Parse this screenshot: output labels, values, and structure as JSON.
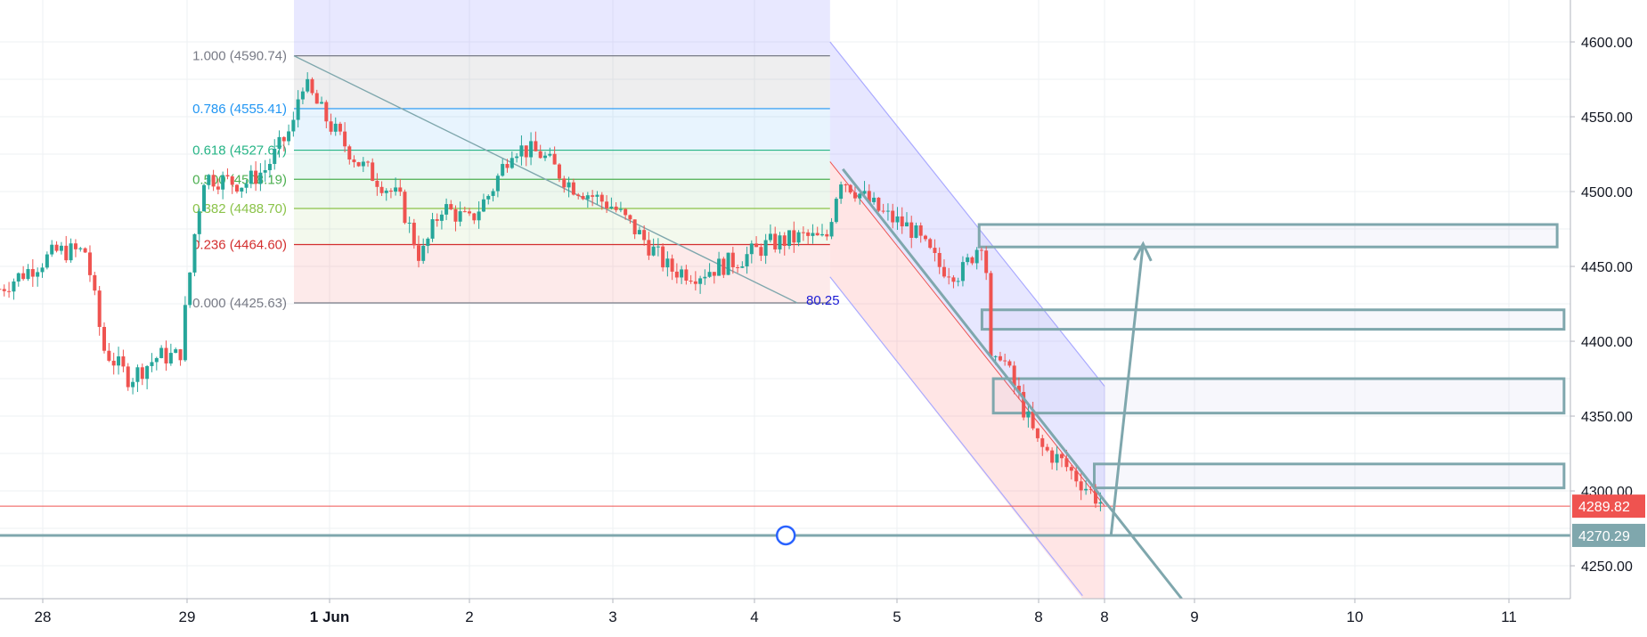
{
  "colors": {
    "up": "#26a69a",
    "down": "#ef5350",
    "grid": "#eef0f3",
    "axis_text": "#131722",
    "line_tool": "#7fa7ad",
    "last_price_bg": "#ef5350",
    "line_price_bg": "#7fa7ad",
    "channel_blue": "#aaaaff",
    "channel_fill_top": "rgba(120,120,255,0.18)",
    "channel_fill_bottom": "rgba(255,110,110,0.18)",
    "fib_box_fill": "rgba(120,120,255,0.17)"
  },
  "chart_data": {
    "type": "candlestick",
    "title": "",
    "xlabel": "",
    "ylabel": "",
    "ylim": [
      4228,
      4628
    ],
    "grid": true,
    "y_ticks": [
      "4600.00",
      "4550.00",
      "4500.00",
      "4450.00",
      "4400.00",
      "4350.00",
      "4300.00",
      "4250.00"
    ],
    "x_ticks": [
      {
        "label": "28",
        "day": 0.0
      },
      {
        "label": "29",
        "day": 1.0
      },
      {
        "label": "1 Jun",
        "day": 2.0,
        "bold": true
      },
      {
        "label": "2",
        "day": 3.0
      },
      {
        "label": "3",
        "day": 4.0
      },
      {
        "label": "4",
        "day": 5.0
      },
      {
        "label": "5",
        "day": 6.0
      },
      {
        "label": "8",
        "day": 7.0
      },
      {
        "label": "8",
        "day": 7.45
      },
      {
        "label": "9",
        "day": 8.15
      },
      {
        "label": "10",
        "day": 9.2
      },
      {
        "label": "11",
        "day": 10.25
      }
    ],
    "price_labels": [
      {
        "value": 4289.82,
        "text": "4289.82",
        "style": "last"
      },
      {
        "value": 4270.29,
        "text": "4270.29",
        "style": "line"
      }
    ],
    "fib": {
      "start_day": 1.75,
      "end_day": 5.53,
      "levels": [
        {
          "ratio": "1.000",
          "price": 4590.74,
          "label": "1.000 (4590.74)",
          "color": "#787b86",
          "fill": "rgba(120,123,134,0.13)"
        },
        {
          "ratio": "0.786",
          "price": 4555.41,
          "label": "0.786 (4555.41)",
          "color": "#2196f3",
          "fill": "rgba(33,150,243,0.10)"
        },
        {
          "ratio": "0.618",
          "price": 4527.67,
          "label": "0.618 (4527.67)",
          "color": "#26b486",
          "fill": "rgba(38,180,134,0.10)"
        },
        {
          "ratio": "0.500",
          "price": 4508.19,
          "label": "0.500 (4508.19)",
          "color": "#4caf50",
          "fill": "rgba(76,175,80,0.10)"
        },
        {
          "ratio": "0.382",
          "price": 4488.7,
          "label": "0.382 (4488.70)",
          "color": "#8bc34a",
          "fill": "rgba(139,195,74,0.10)"
        },
        {
          "ratio": "0.236",
          "price": 4464.6,
          "label": "0.236 (4464.60)",
          "color": "#d32f2f",
          "fill": "rgba(239,83,80,0.12)"
        },
        {
          "ratio": "0.000",
          "price": 4425.63,
          "label": "0.000 (4425.63)",
          "color": "#787b86",
          "fill": "rgba(239,83,80,0.12)"
        }
      ],
      "trend_start": {
        "day": 1.75,
        "price": 4590.74
      },
      "trend_end": {
        "day": 5.3,
        "price": 4425.63
      },
      "annotation": "80.25"
    },
    "channel": {
      "top_start": {
        "day": 5.53,
        "price": 4600
      },
      "top_end": {
        "day": 7.45,
        "price": 4370
      },
      "mid_start": {
        "day": 5.53,
        "price": 4520
      },
      "bottom_start": {
        "day": 5.53,
        "price": 4443
      },
      "bottom_end": {
        "day": 7.3,
        "price": 4230
      },
      "end_day": 7.45
    },
    "zones": [
      {
        "day_start": 6.58,
        "day_end": 10.6,
        "price_top": 4478,
        "price_bottom": 4463
      },
      {
        "day_start": 6.6,
        "day_end": 10.65,
        "price_top": 4421,
        "price_bottom": 4408
      },
      {
        "day_start": 6.68,
        "day_end": 10.65,
        "price_top": 4375,
        "price_bottom": 4352
      },
      {
        "day_start": 7.38,
        "day_end": 10.65,
        "price_top": 4318,
        "price_bottom": 4302
      }
    ],
    "tool_lines": [
      {
        "from": {
          "day": 5.62,
          "price": 4515
        },
        "to": {
          "day": 8.05,
          "price": 4228
        }
      },
      {
        "from": {
          "day": 7.5,
          "price": 4270
        },
        "to": {
          "day": 7.75,
          "price": 4465
        }
      }
    ],
    "horizontal_lines": [
      {
        "price": 4289.82,
        "style": "last"
      },
      {
        "price": 4270.29,
        "style": "line",
        "handle_day": 5.22
      }
    ],
    "candles": []
  }
}
